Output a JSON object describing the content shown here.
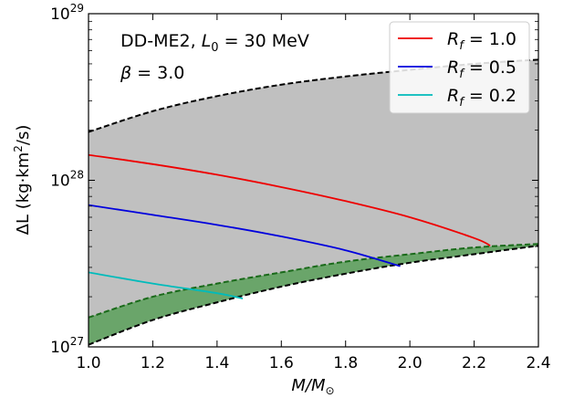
{
  "chart_data": {
    "type": "area",
    "title": "",
    "xlabel_main": "M/M",
    "xlabel_sub": "⊙",
    "ylabel_main": "ΔL (kg·km",
    "ylabel_sup": "2",
    "ylabel_end": "/s)",
    "xlim": [
      1.0,
      2.4
    ],
    "ylim": [
      1e+27,
      1e+29
    ],
    "yscale": "log",
    "xticks": [
      1.0,
      1.2,
      1.4,
      1.6,
      1.8,
      2.0,
      2.2,
      2.4
    ],
    "xtick_labels": [
      "1.0",
      "1.2",
      "1.4",
      "1.6",
      "1.8",
      "2.0",
      "2.2",
      "2.4"
    ],
    "yticks": [
      {
        "value": 1e+27,
        "base": "10",
        "exp": "27"
      },
      {
        "value": 1e+28,
        "base": "10",
        "exp": "28"
      },
      {
        "value": 1e+29,
        "base": "10",
        "exp": "29"
      }
    ],
    "annotations": {
      "line1_a": "DD-ME2, ",
      "line1_L": "L",
      "line1_sub": "0",
      "line1_b": " = 30 MeV",
      "line2_beta": "β",
      "line2_b": " = 3.0"
    },
    "bands": [
      {
        "name": "gray-band",
        "fill": "#c0c0c0",
        "upper": {
          "x": [
            1.0,
            1.2,
            1.4,
            1.6,
            1.8,
            2.0,
            2.2,
            2.4
          ],
          "y": [
            1.95e+28,
            2.6e+28,
            3.2e+28,
            3.75e+28,
            4.2e+28,
            4.6e+28,
            5e+28,
            5.3e+28
          ]
        },
        "lower": {
          "x": [
            1.0,
            1.2,
            1.4,
            1.6,
            1.8,
            2.0,
            2.2,
            2.4
          ],
          "y": [
            1.03e+27,
            1.45e+27,
            1.85e+27,
            2.3e+27,
            2.75e+27,
            3.2e+27,
            3.6e+27,
            4.05e+27
          ]
        }
      },
      {
        "name": "green-band",
        "fill": "#6aa56a",
        "edge": "#1a6a1a",
        "upper": {
          "x": [
            1.0,
            1.2,
            1.4,
            1.6,
            1.8,
            2.0,
            2.2,
            2.4
          ],
          "y": [
            1.5e+27,
            2e+27,
            2.4e+27,
            2.8e+27,
            3.25e+27,
            3.6e+27,
            3.95e+27,
            4.15e+27
          ]
        },
        "lower": {
          "x": [
            1.0,
            1.2,
            1.4,
            1.6,
            1.8,
            2.0,
            2.2,
            2.4
          ],
          "y": [
            1.03e+27,
            1.45e+27,
            1.85e+27,
            2.3e+27,
            2.75e+27,
            3.2e+27,
            3.6e+27,
            4.05e+27
          ]
        }
      }
    ],
    "series": [
      {
        "name_R": "R",
        "name_sub": "f",
        "name_val": " = 1.0",
        "color": "#ee0000",
        "x": [
          1.0,
          1.2,
          1.4,
          1.6,
          1.8,
          2.0,
          2.2,
          2.25
        ],
        "y": [
          1.42e+28,
          1.25e+28,
          1.08e+28,
          9.1e+27,
          7.5e+27,
          6e+27,
          4.5e+27,
          4.05e+27
        ]
      },
      {
        "name_R": "R",
        "name_sub": "f",
        "name_val": " = 0.5",
        "color": "#0000dd",
        "x": [
          1.0,
          1.2,
          1.4,
          1.6,
          1.8,
          1.97
        ],
        "y": [
          7.1e+27,
          6.2e+27,
          5.4e+27,
          4.6e+27,
          3.8e+27,
          3.05e+27
        ]
      },
      {
        "name_R": "R",
        "name_sub": "f",
        "name_val": " = 0.2",
        "color": "#00bbbb",
        "x": [
          1.0,
          1.2,
          1.4,
          1.48
        ],
        "y": [
          2.8e+27,
          2.4e+27,
          2.1e+27,
          1.95e+27
        ]
      }
    ],
    "legend_position": "top-right"
  }
}
